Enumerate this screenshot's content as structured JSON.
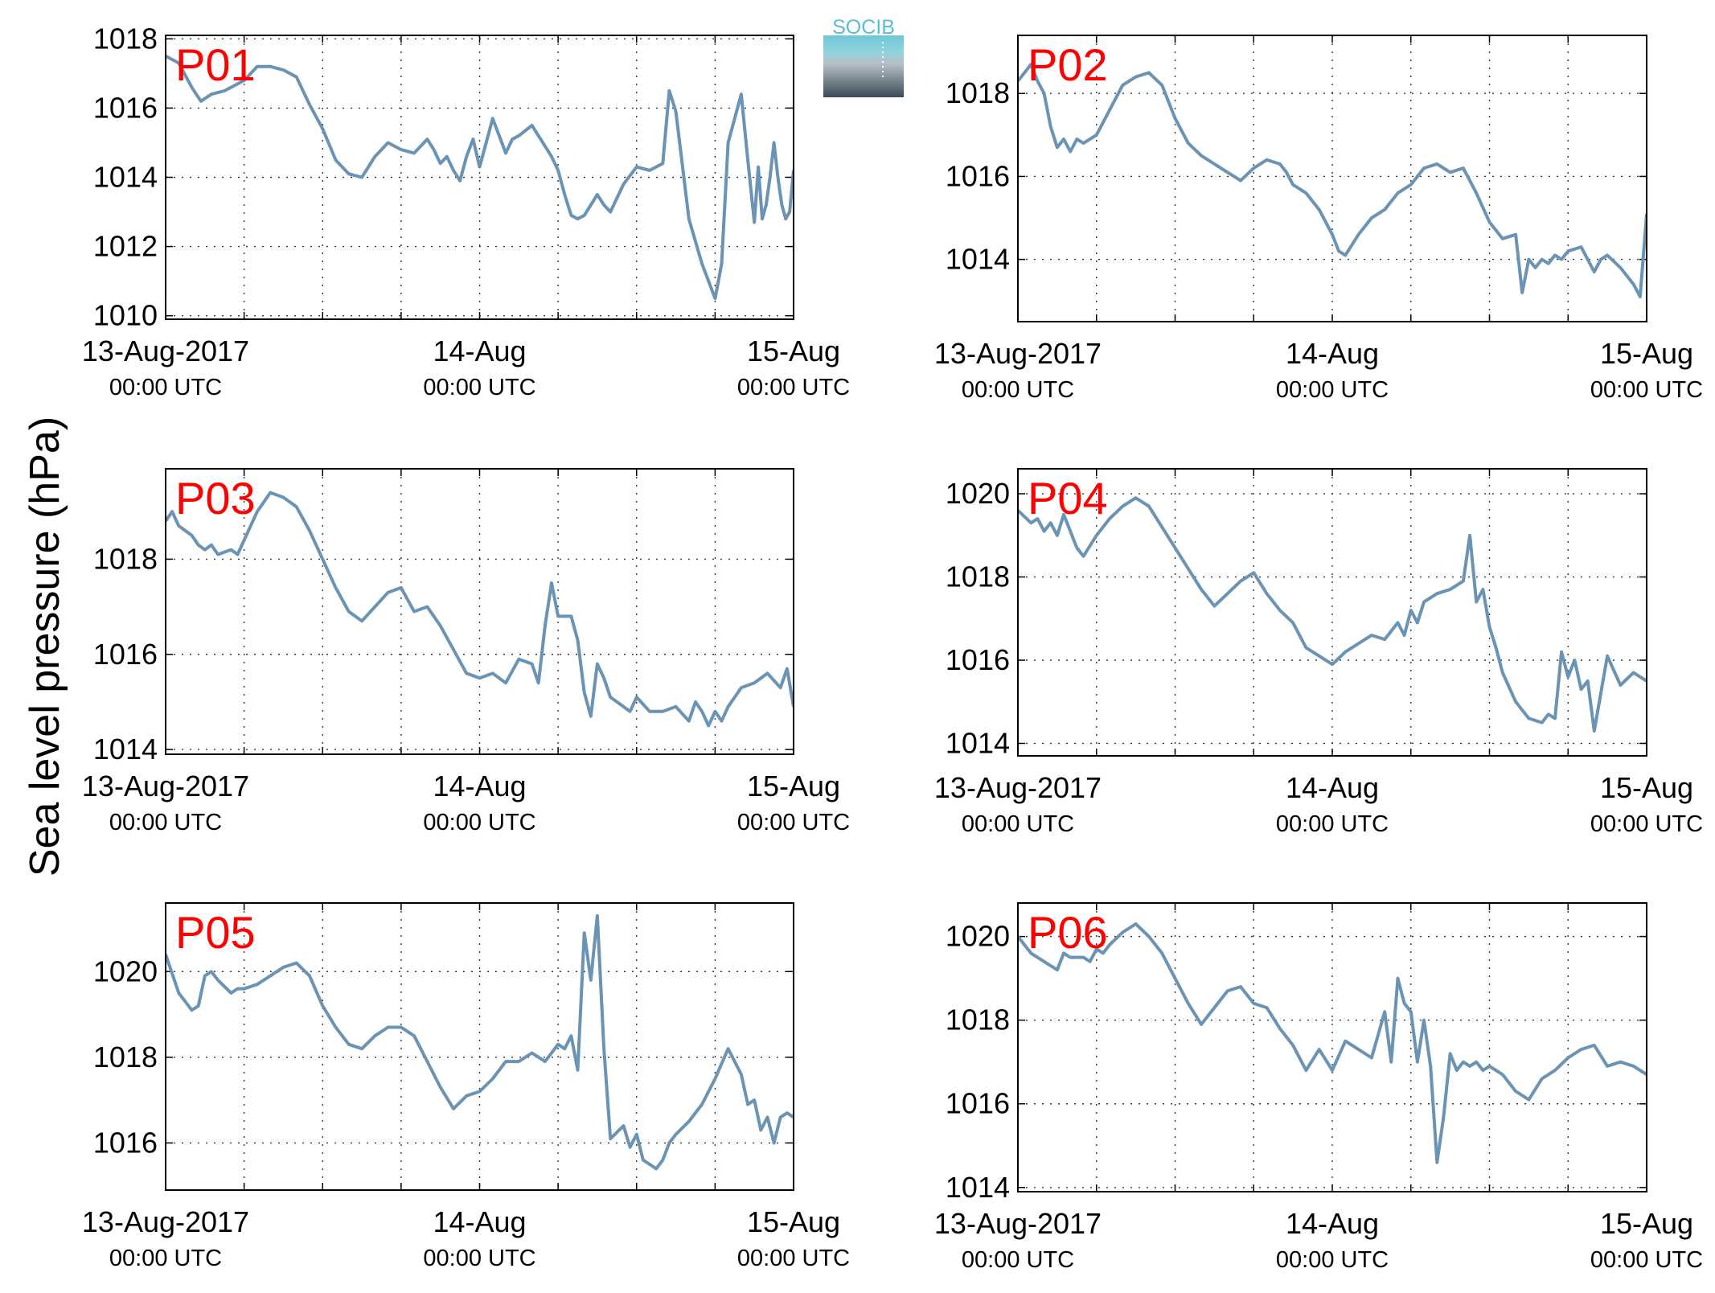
{
  "figure": {
    "ylabel": "Sea level pressure (hPa)",
    "logo_text": "SOCIB",
    "line_color": "#6a93b4",
    "label_color": "#ff0000",
    "x_ticks": [
      {
        "t": 0,
        "line1": "13-Aug-2017",
        "line2": "00:00 UTC"
      },
      {
        "t": 24,
        "line1": "14-Aug",
        "line2": "00:00 UTC"
      },
      {
        "t": 48,
        "line1": "15-Aug",
        "line2": "00:00 UTC"
      }
    ]
  },
  "chart_data": [
    {
      "type": "line",
      "label": "P01",
      "xlim": [
        0,
        48
      ],
      "ylim": [
        1009.9,
        1018.1
      ],
      "yticks": [
        1010,
        1012,
        1014,
        1016,
        1018
      ],
      "x": [
        0,
        1,
        2,
        2.7,
        3.5,
        4.5,
        5,
        6,
        7,
        8,
        9,
        10,
        11,
        12,
        13,
        14,
        15,
        16,
        17,
        18,
        19,
        19.5,
        20,
        20.5,
        21,
        21.5,
        22,
        22.5,
        23,
        23.5,
        24,
        25,
        26,
        26.5,
        27,
        28,
        29,
        29.5,
        30,
        30.5,
        31,
        31.5,
        32,
        32.5,
        33,
        33.5,
        34,
        35,
        36,
        37,
        38,
        38.5,
        39,
        40,
        41,
        42,
        42.5,
        43,
        44,
        44.5,
        45,
        45.3,
        45.6,
        45.9,
        46.2,
        46.5,
        46.8,
        47.1,
        47.4,
        47.7,
        48
      ],
      "y": [
        1017.5,
        1017.3,
        1016.6,
        1016.2,
        1016.4,
        1016.5,
        1016.6,
        1016.8,
        1017.2,
        1017.2,
        1017.1,
        1016.9,
        1016.1,
        1015.4,
        1014.5,
        1014.1,
        1014.0,
        1014.6,
        1015.0,
        1014.8,
        1014.7,
        1014.9,
        1015.1,
        1014.8,
        1014.4,
        1014.6,
        1014.2,
        1013.9,
        1014.6,
        1015.1,
        1014.3,
        1015.7,
        1014.7,
        1015.1,
        1015.2,
        1015.5,
        1014.9,
        1014.6,
        1014.2,
        1013.5,
        1012.9,
        1012.8,
        1012.9,
        1013.2,
        1013.5,
        1013.2,
        1013.0,
        1013.8,
        1014.3,
        1014.2,
        1014.4,
        1016.5,
        1015.9,
        1012.8,
        1011.5,
        1010.5,
        1011.5,
        1015.0,
        1016.4,
        1014.5,
        1012.7,
        1014.3,
        1012.8,
        1013.2,
        1014.0,
        1015.0,
        1014.0,
        1013.2,
        1012.8,
        1013.0,
        1014.2
      ]
    },
    {
      "type": "line",
      "label": "P02",
      "xlim": [
        0,
        48
      ],
      "ylim": [
        1012.5,
        1019.4
      ],
      "yticks": [
        1014,
        1016,
        1018
      ],
      "x": [
        0,
        1,
        1.5,
        2,
        2.5,
        3,
        3.5,
        4,
        4.5,
        5,
        5.5,
        6,
        7,
        8,
        9,
        10,
        11,
        11.5,
        12,
        13,
        14,
        15,
        16,
        17,
        18,
        19,
        20,
        20.5,
        21,
        22,
        23,
        24,
        24.5,
        25,
        26,
        27,
        28,
        29,
        30,
        31,
        32,
        33,
        34,
        35,
        36,
        37,
        38,
        38.5,
        39,
        39.5,
        40,
        40.5,
        41,
        41.5,
        42,
        43,
        44,
        44.5,
        45,
        46,
        47,
        47.5,
        48
      ],
      "y": [
        1018.3,
        1018.7,
        1018.3,
        1018.0,
        1017.2,
        1016.7,
        1016.9,
        1016.6,
        1016.9,
        1016.8,
        1016.9,
        1017.0,
        1017.6,
        1018.2,
        1018.4,
        1018.5,
        1018.2,
        1017.8,
        1017.4,
        1016.8,
        1016.5,
        1016.3,
        1016.1,
        1015.9,
        1016.2,
        1016.4,
        1016.3,
        1016.1,
        1015.8,
        1015.6,
        1015.2,
        1014.6,
        1014.2,
        1014.1,
        1014.6,
        1015.0,
        1015.2,
        1015.6,
        1015.8,
        1016.2,
        1016.3,
        1016.1,
        1016.2,
        1015.6,
        1014.9,
        1014.5,
        1014.6,
        1013.2,
        1014.0,
        1013.8,
        1014.0,
        1013.9,
        1014.1,
        1014.0,
        1014.2,
        1014.3,
        1013.7,
        1014.0,
        1014.1,
        1013.8,
        1013.4,
        1013.1,
        1015.1
      ]
    },
    {
      "type": "line",
      "label": "P03",
      "xlim": [
        0,
        48
      ],
      "ylim": [
        1013.9,
        1019.9
      ],
      "yticks": [
        1014,
        1016,
        1018
      ],
      "x": [
        0,
        0.5,
        1,
        1.5,
        2,
        2.5,
        3,
        3.5,
        4,
        5,
        5.5,
        6,
        7,
        8,
        9,
        10,
        11,
        12,
        13,
        14,
        15,
        16,
        17,
        18,
        19,
        20,
        21,
        22,
        23,
        24,
        25,
        26,
        27,
        28,
        28.5,
        29,
        29.5,
        30,
        31,
        31.5,
        32,
        32.5,
        33,
        33.5,
        34,
        34.5,
        35,
        35.5,
        36,
        37,
        38,
        39,
        40,
        40.5,
        41,
        41.5,
        42,
        42.5,
        43,
        43.5,
        44,
        45,
        46,
        47,
        47.5,
        48
      ],
      "y": [
        1018.8,
        1019.0,
        1018.7,
        1018.6,
        1018.5,
        1018.3,
        1018.2,
        1018.3,
        1018.1,
        1018.2,
        1018.1,
        1018.4,
        1019.0,
        1019.4,
        1019.3,
        1019.1,
        1018.6,
        1018.0,
        1017.4,
        1016.9,
        1016.7,
        1017.0,
        1017.3,
        1017.4,
        1016.9,
        1017.0,
        1016.6,
        1016.1,
        1015.6,
        1015.5,
        1015.6,
        1015.4,
        1015.9,
        1015.8,
        1015.4,
        1016.6,
        1017.5,
        1016.8,
        1016.8,
        1016.3,
        1015.2,
        1014.7,
        1015.8,
        1015.5,
        1015.1,
        1015.0,
        1014.9,
        1014.8,
        1015.1,
        1014.8,
        1014.8,
        1014.9,
        1014.6,
        1015.0,
        1014.8,
        1014.5,
        1014.8,
        1014.6,
        1014.9,
        1015.1,
        1015.3,
        1015.4,
        1015.6,
        1015.3,
        1015.7,
        1014.9
      ]
    },
    {
      "type": "line",
      "label": "P04",
      "xlim": [
        0,
        48
      ],
      "ylim": [
        1013.7,
        1020.6
      ],
      "yticks": [
        1014,
        1016,
        1018,
        1020
      ],
      "x": [
        0,
        1,
        1.5,
        2,
        2.5,
        3,
        3.5,
        4,
        4.5,
        5,
        6,
        7,
        8,
        9,
        10,
        11,
        12,
        13,
        14,
        15,
        16,
        17,
        18,
        19,
        20,
        21,
        22,
        22.5,
        23,
        24,
        25,
        26,
        27,
        28,
        29,
        29.5,
        30,
        30.5,
        31,
        32,
        33,
        34,
        34.5,
        35,
        35.5,
        36,
        36.5,
        37,
        38,
        39,
        40,
        40.5,
        41,
        41.5,
        42,
        42.5,
        43,
        43.5,
        44,
        45,
        46,
        47,
        48
      ],
      "y": [
        1019.6,
        1019.3,
        1019.4,
        1019.1,
        1019.3,
        1019.0,
        1019.5,
        1019.1,
        1018.7,
        1018.5,
        1019.0,
        1019.4,
        1019.7,
        1019.9,
        1019.7,
        1019.2,
        1018.7,
        1018.2,
        1017.7,
        1017.3,
        1017.6,
        1017.9,
        1018.1,
        1017.6,
        1017.2,
        1016.9,
        1016.3,
        1016.2,
        1016.1,
        1015.9,
        1016.2,
        1016.4,
        1016.6,
        1016.5,
        1016.9,
        1016.6,
        1017.2,
        1016.9,
        1017.4,
        1017.6,
        1017.7,
        1017.9,
        1019.0,
        1017.4,
        1017.7,
        1016.8,
        1016.3,
        1015.7,
        1015.0,
        1014.6,
        1014.5,
        1014.7,
        1014.6,
        1016.2,
        1015.6,
        1016.0,
        1015.3,
        1015.5,
        1014.3,
        1016.1,
        1015.4,
        1015.7,
        1015.5
      ]
    },
    {
      "type": "line",
      "label": "P05",
      "xlim": [
        0,
        48
      ],
      "ylim": [
        1014.9,
        1021.6
      ],
      "yticks": [
        1016,
        1018,
        1020
      ],
      "x": [
        0,
        1,
        2,
        2.5,
        3,
        3.5,
        4,
        5,
        5.5,
        6,
        7,
        8,
        9,
        10,
        11,
        12,
        13,
        14,
        15,
        16,
        17,
        18,
        19,
        20,
        21,
        22,
        23,
        24,
        25,
        26,
        27,
        28,
        29,
        30,
        30.5,
        31,
        31.5,
        32,
        32.5,
        33,
        33.5,
        34,
        35,
        35.5,
        36,
        36.5,
        37,
        37.5,
        38,
        38.5,
        39,
        40,
        41,
        42,
        43,
        44,
        44.5,
        45,
        45.5,
        46,
        46.5,
        47,
        47.5,
        48
      ],
      "y": [
        1020.4,
        1019.5,
        1019.1,
        1019.2,
        1019.9,
        1020.0,
        1019.8,
        1019.5,
        1019.6,
        1019.6,
        1019.7,
        1019.9,
        1020.1,
        1020.2,
        1019.9,
        1019.2,
        1018.7,
        1018.3,
        1018.2,
        1018.5,
        1018.7,
        1018.7,
        1018.5,
        1017.9,
        1017.3,
        1016.8,
        1017.1,
        1017.2,
        1017.5,
        1017.9,
        1017.9,
        1018.1,
        1017.9,
        1018.3,
        1018.2,
        1018.5,
        1017.7,
        1020.9,
        1019.8,
        1021.3,
        1018.2,
        1016.1,
        1016.4,
        1015.9,
        1016.2,
        1015.6,
        1015.5,
        1015.4,
        1015.6,
        1016.0,
        1016.2,
        1016.5,
        1016.9,
        1017.5,
        1018.2,
        1017.6,
        1016.9,
        1017.0,
        1016.3,
        1016.6,
        1016.0,
        1016.6,
        1016.7,
        1016.6
      ]
    },
    {
      "type": "line",
      "label": "P06",
      "xlim": [
        0,
        48
      ],
      "ylim": [
        1013.9,
        1020.8
      ],
      "yticks": [
        1014,
        1016,
        1018,
        1020
      ],
      "x": [
        0,
        1,
        2,
        3,
        3.5,
        4,
        5,
        5.5,
        6,
        6.5,
        7,
        8,
        9,
        10,
        11,
        12,
        13,
        14,
        15,
        16,
        17,
        18,
        19,
        20,
        21,
        22,
        23,
        24,
        25,
        26,
        27,
        28,
        28.5,
        29,
        29.5,
        30,
        30.5,
        31,
        31.5,
        32,
        32.5,
        33,
        33.5,
        34,
        34.5,
        35,
        35.5,
        36,
        37,
        38,
        39,
        40,
        41,
        42,
        43,
        44,
        45,
        46,
        47,
        48
      ],
      "y": [
        1020.0,
        1019.6,
        1019.4,
        1019.2,
        1019.6,
        1019.5,
        1019.5,
        1019.4,
        1019.7,
        1019.6,
        1019.8,
        1020.1,
        1020.3,
        1020.0,
        1019.6,
        1019.0,
        1018.4,
        1017.9,
        1018.3,
        1018.7,
        1018.8,
        1018.4,
        1018.3,
        1017.8,
        1017.4,
        1016.8,
        1017.3,
        1016.8,
        1017.5,
        1017.3,
        1017.1,
        1018.2,
        1017.0,
        1019.0,
        1018.4,
        1018.2,
        1017.0,
        1018.0,
        1016.9,
        1014.6,
        1015.7,
        1017.2,
        1016.8,
        1017.0,
        1016.9,
        1017.0,
        1016.8,
        1016.9,
        1016.7,
        1016.3,
        1016.1,
        1016.6,
        1016.8,
        1017.1,
        1017.3,
        1017.4,
        1016.9,
        1017.0,
        1016.9,
        1016.7
      ]
    }
  ]
}
